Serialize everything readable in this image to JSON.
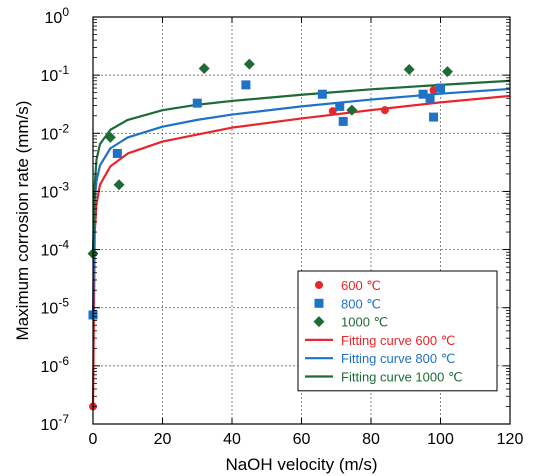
{
  "chart_data": {
    "type": "scatter",
    "title": "",
    "xlabel": "NaOH velocity (m/s)",
    "ylabel": "Maximum corrosion rate (mm/s)",
    "xlim": [
      0,
      120
    ],
    "ylim": [
      1e-07,
      1
    ],
    "yscale": "log",
    "grid": true,
    "legend_position": "bottom-right",
    "x_ticks": [
      "0",
      "20",
      "40",
      "60",
      "80",
      "100",
      "120"
    ],
    "y_ticks": [
      {
        "base": "10",
        "exp": "0"
      },
      {
        "base": "10",
        "exp": "-1"
      },
      {
        "base": "10",
        "exp": "-2"
      },
      {
        "base": "10",
        "exp": "-3"
      },
      {
        "base": "10",
        "exp": "-4"
      },
      {
        "base": "10",
        "exp": "-5"
      },
      {
        "base": "10",
        "exp": "-6"
      },
      {
        "base": "10",
        "exp": "-7"
      }
    ],
    "series": [
      {
        "name": "600 ℃",
        "kind": "points",
        "marker": "circle",
        "color": "#e8262b",
        "points": [
          [
            0,
            2e-07
          ],
          [
            69,
            0.024
          ],
          [
            84,
            0.025
          ],
          [
            98,
            0.055
          ]
        ]
      },
      {
        "name": "800 ℃",
        "kind": "points",
        "marker": "square",
        "color": "#1f72c4",
        "points": [
          [
            0,
            7.5e-06
          ],
          [
            7,
            0.0045
          ],
          [
            30,
            0.033
          ],
          [
            44,
            0.068
          ],
          [
            66,
            0.047
          ],
          [
            71,
            0.029
          ],
          [
            72,
            0.016
          ],
          [
            95,
            0.047
          ],
          [
            97,
            0.04
          ],
          [
            98,
            0.019
          ],
          [
            100,
            0.06
          ]
        ]
      },
      {
        "name": "1000 ℃",
        "kind": "points",
        "marker": "diamond",
        "color": "#1e6b35",
        "points": [
          [
            0,
            8.5e-05
          ],
          [
            5,
            0.0085
          ],
          [
            7.5,
            0.0013
          ],
          [
            32,
            0.13
          ],
          [
            45,
            0.155
          ],
          [
            74.5,
            0.025
          ],
          [
            91,
            0.125
          ],
          [
            102,
            0.115
          ]
        ]
      },
      {
        "name": "Fitting curve 600 ℃",
        "kind": "line",
        "color": "#e8262b",
        "points": [
          [
            0,
            2e-07
          ],
          [
            0.5,
            0.0002
          ],
          [
            1,
            0.0006
          ],
          [
            2,
            0.0013
          ],
          [
            5,
            0.0027
          ],
          [
            10,
            0.0045
          ],
          [
            20,
            0.0072
          ],
          [
            30,
            0.0095
          ],
          [
            40,
            0.0125
          ],
          [
            60,
            0.018
          ],
          [
            80,
            0.025
          ],
          [
            100,
            0.034
          ],
          [
            120,
            0.044
          ]
        ]
      },
      {
        "name": "Fitting curve 800 ℃",
        "kind": "line",
        "color": "#1f72c4",
        "points": [
          [
            0,
            7.5e-06
          ],
          [
            0.5,
            0.0007
          ],
          [
            1,
            0.0015
          ],
          [
            2,
            0.0028
          ],
          [
            5,
            0.0055
          ],
          [
            10,
            0.0085
          ],
          [
            20,
            0.013
          ],
          [
            30,
            0.017
          ],
          [
            40,
            0.021
          ],
          [
            60,
            0.029
          ],
          [
            80,
            0.038
          ],
          [
            100,
            0.048
          ],
          [
            120,
            0.058
          ]
        ]
      },
      {
        "name": "Fitting curve 1000 ℃",
        "kind": "line",
        "color": "#1e6b35",
        "points": [
          [
            0,
            8.5e-05
          ],
          [
            0.5,
            0.0013
          ],
          [
            1,
            0.0035
          ],
          [
            2,
            0.0065
          ],
          [
            5,
            0.0115
          ],
          [
            10,
            0.017
          ],
          [
            20,
            0.025
          ],
          [
            30,
            0.031
          ],
          [
            40,
            0.036
          ],
          [
            60,
            0.046
          ],
          [
            80,
            0.057
          ],
          [
            100,
            0.068
          ],
          [
            120,
            0.08
          ]
        ]
      }
    ]
  }
}
